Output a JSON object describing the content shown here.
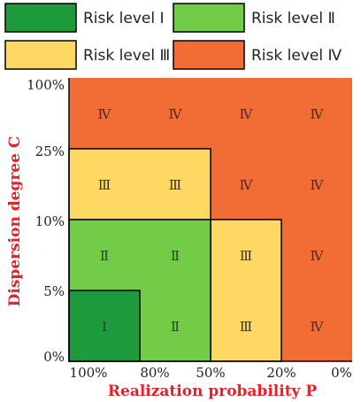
{
  "colors": {
    "level_1": "#1c9a3c",
    "level_2": "#72cc48",
    "level_3": "#fdd964",
    "level_4": "#f26c35",
    "axis_title": "#e8202a",
    "border": "#000000"
  },
  "legend": [
    {
      "label": "Risk level Ⅰ",
      "color": "#1c9a3c"
    },
    {
      "label": "Risk level Ⅱ",
      "color": "#72cc48"
    },
    {
      "label": "Risk level Ⅲ",
      "color": "#fdd964"
    },
    {
      "label": "Risk level Ⅳ",
      "color": "#f26c35"
    }
  ],
  "axes": {
    "x_title": "Realization probability P",
    "y_title": "Dispersion degree C",
    "x_ticks": [
      "100%",
      "80%",
      "50%",
      "20%",
      "0%"
    ],
    "y_ticks": [
      "100%",
      "25%",
      "10%",
      "5%",
      "0%"
    ]
  },
  "grid": {
    "rows": [
      [
        "Ⅳ",
        "Ⅳ",
        "Ⅳ",
        "Ⅳ"
      ],
      [
        "Ⅲ",
        "Ⅲ",
        "Ⅳ",
        "Ⅳ"
      ],
      [
        "Ⅱ",
        "Ⅱ",
        "Ⅲ",
        "Ⅳ"
      ],
      [
        "Ⅰ",
        "Ⅱ",
        "Ⅲ",
        "Ⅳ"
      ]
    ]
  }
}
